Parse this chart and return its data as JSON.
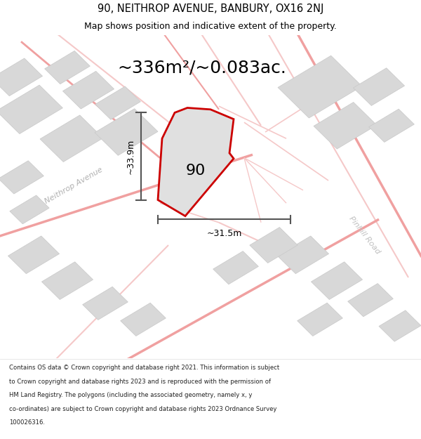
{
  "title_line1": "90, NEITHROP AVENUE, BANBURY, OX16 2NJ",
  "title_line2": "Map shows position and indicative extent of the property.",
  "area_text": "~336m²/~0.083ac.",
  "property_number": "90",
  "dim_height": "~33.9m",
  "dim_width": "~31.5m",
  "footer_lines": [
    "Contains OS data © Crown copyright and database right 2021. This information is subject",
    "to Crown copyright and database rights 2023 and is reproduced with the permission of",
    "HM Land Registry. The polygons (including the associated geometry, namely x, y",
    "co-ordinates) are subject to Crown copyright and database rights 2023 Ordnance Survey",
    "100026316."
  ],
  "bg_color": "#f7f7f7",
  "road_color_main": "#f0a0a0",
  "road_color_light": "#f5c8c8",
  "building_color": "#d8d8d8",
  "building_edge": "#c8c8c8",
  "property_fill": "#e0e0e0",
  "property_edge": "#cc0000",
  "dim_color": "#555555",
  "road_label_color": "#b0b0b0",
  "road_label_color2": "#c0c0c0",
  "title_fontsize": 10.5,
  "subtitle_fontsize": 9.0,
  "area_fontsize": 18,
  "dim_fontsize": 9,
  "prop_num_fontsize": 16,
  "road_label_fontsize": 8,
  "footer_fontsize": 6.1
}
